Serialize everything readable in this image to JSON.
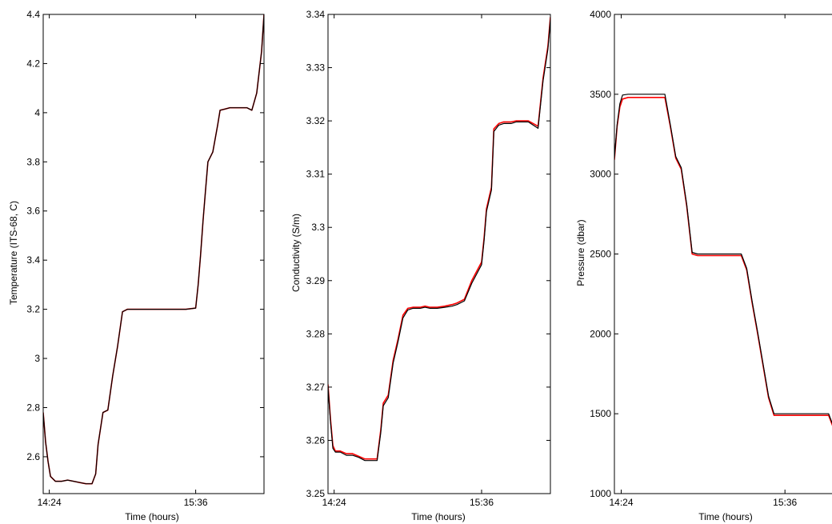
{
  "chart_data": [
    {
      "type": "line",
      "xlabel": "Time (hours)",
      "ylabel": "Temperature (ITS-68, C)",
      "ylim": [
        2.45,
        4.4
      ],
      "yticks": [
        "2.6",
        "2.8",
        "3",
        "3.2",
        "3.4",
        "3.6",
        "3.8",
        "4",
        "4.2",
        "4.4"
      ],
      "ytick_values": [
        2.6,
        2.8,
        3.0,
        3.2,
        3.4,
        3.6,
        3.8,
        4.0,
        4.2,
        4.4
      ],
      "xticks": [
        "14:24",
        "15:36"
      ],
      "xtick_values": [
        14.4,
        15.6
      ],
      "xlim": [
        14.35,
        16.16
      ],
      "series": [
        {
          "color": "#ff0000",
          "x": [
            14.35,
            14.37,
            14.39,
            14.41,
            14.45,
            14.5,
            14.55,
            14.6,
            14.65,
            14.7,
            14.75,
            14.78,
            14.8,
            14.84,
            14.88,
            14.92,
            14.96,
            15.0,
            15.04,
            15.08,
            15.1,
            15.14,
            15.18,
            15.2,
            15.24,
            15.3,
            15.36,
            15.4,
            15.46,
            15.52,
            15.6,
            15.62,
            15.64,
            15.66,
            15.68,
            15.7,
            15.74,
            15.78,
            15.8,
            15.84,
            15.88,
            15.9,
            15.94,
            15.98,
            16.02,
            16.06,
            16.1,
            16.14,
            16.16
          ],
          "y": [
            2.78,
            2.66,
            2.58,
            2.52,
            2.5,
            2.5,
            2.505,
            2.5,
            2.495,
            2.49,
            2.49,
            2.53,
            2.65,
            2.78,
            2.79,
            2.93,
            3.05,
            3.19,
            3.2,
            3.2,
            3.2,
            3.2,
            3.2,
            3.2,
            3.2,
            3.2,
            3.2,
            3.2,
            3.2,
            3.2,
            3.205,
            3.3,
            3.42,
            3.56,
            3.68,
            3.8,
            3.84,
            3.95,
            4.01,
            4.015,
            4.02,
            4.02,
            4.02,
            4.02,
            4.02,
            4.01,
            4.08,
            4.25,
            4.4
          ]
        },
        {
          "color": "#000000",
          "x": [
            14.35,
            14.37,
            14.39,
            14.41,
            14.45,
            14.5,
            14.55,
            14.6,
            14.65,
            14.7,
            14.75,
            14.78,
            14.8,
            14.84,
            14.88,
            14.92,
            14.96,
            15.0,
            15.04,
            15.08,
            15.1,
            15.14,
            15.18,
            15.2,
            15.24,
            15.3,
            15.36,
            15.4,
            15.46,
            15.52,
            15.6,
            15.62,
            15.64,
            15.66,
            15.68,
            15.7,
            15.74,
            15.78,
            15.8,
            15.84,
            15.88,
            15.9,
            15.94,
            15.98,
            16.02,
            16.06,
            16.1,
            16.14,
            16.16
          ],
          "y": [
            2.78,
            2.66,
            2.58,
            2.52,
            2.5,
            2.5,
            2.505,
            2.5,
            2.495,
            2.49,
            2.49,
            2.53,
            2.65,
            2.78,
            2.79,
            2.93,
            3.05,
            3.19,
            3.2,
            3.2,
            3.2,
            3.2,
            3.2,
            3.2,
            3.2,
            3.2,
            3.2,
            3.2,
            3.2,
            3.2,
            3.205,
            3.3,
            3.42,
            3.56,
            3.68,
            3.8,
            3.84,
            3.95,
            4.01,
            4.015,
            4.02,
            4.02,
            4.02,
            4.02,
            4.02,
            4.01,
            4.08,
            4.25,
            4.4
          ]
        }
      ]
    },
    {
      "type": "line",
      "xlabel": "Time (hours)",
      "ylabel": "Conductivity (S/m)",
      "ylim": [
        3.25,
        3.34
      ],
      "yticks": [
        "3.25",
        "3.26",
        "3.27",
        "3.28",
        "3.29",
        "3.3",
        "3.31",
        "3.32",
        "3.33",
        "3.34"
      ],
      "ytick_values": [
        3.25,
        3.26,
        3.27,
        3.28,
        3.29,
        3.3,
        3.31,
        3.32,
        3.33,
        3.34
      ],
      "xticks": [
        "14:24",
        "15:36"
      ],
      "xtick_values": [
        14.4,
        15.6
      ],
      "xlim": [
        14.35,
        16.16
      ],
      "series": [
        {
          "color": "#ff0000",
          "x": [
            14.35,
            14.37,
            14.39,
            14.41,
            14.45,
            14.5,
            14.55,
            14.6,
            14.65,
            14.7,
            14.75,
            14.78,
            14.8,
            14.84,
            14.88,
            14.92,
            14.96,
            15.0,
            15.04,
            15.08,
            15.1,
            15.14,
            15.18,
            15.2,
            15.24,
            15.3,
            15.36,
            15.4,
            15.46,
            15.52,
            15.6,
            15.62,
            15.64,
            15.66,
            15.68,
            15.7,
            15.74,
            15.78,
            15.8,
            15.84,
            15.88,
            15.9,
            15.94,
            15.98,
            16.02,
            16.06,
            16.1,
            16.14,
            16.16
          ],
          "y": [
            3.2705,
            3.264,
            3.259,
            3.258,
            3.258,
            3.2575,
            3.2575,
            3.257,
            3.2565,
            3.2565,
            3.2565,
            3.262,
            3.267,
            3.2685,
            3.275,
            3.279,
            3.2835,
            3.2848,
            3.285,
            3.285,
            3.285,
            3.2852,
            3.285,
            3.285,
            3.285,
            3.2852,
            3.2855,
            3.2858,
            3.2865,
            3.29,
            3.2935,
            3.298,
            3.3035,
            3.3055,
            3.3075,
            3.3185,
            3.3195,
            3.3198,
            3.3198,
            3.3198,
            3.32,
            3.32,
            3.32,
            3.32,
            3.3195,
            3.319,
            3.328,
            3.334,
            3.3395
          ]
        },
        {
          "color": "#000000",
          "x": [
            14.35,
            14.37,
            14.39,
            14.41,
            14.45,
            14.5,
            14.55,
            14.6,
            14.65,
            14.7,
            14.75,
            14.78,
            14.8,
            14.84,
            14.88,
            14.92,
            14.96,
            15.0,
            15.04,
            15.08,
            15.1,
            15.14,
            15.18,
            15.2,
            15.24,
            15.3,
            15.36,
            15.4,
            15.46,
            15.52,
            15.6,
            15.62,
            15.64,
            15.66,
            15.68,
            15.7,
            15.74,
            15.78,
            15.8,
            15.84,
            15.88,
            15.9,
            15.94,
            15.98,
            16.02,
            16.06,
            16.1,
            16.14,
            16.16
          ],
          "y": [
            3.27,
            3.2635,
            3.2585,
            3.2578,
            3.2578,
            3.2572,
            3.2572,
            3.2568,
            3.2562,
            3.2562,
            3.2562,
            3.2615,
            3.2665,
            3.268,
            3.2745,
            3.2785,
            3.283,
            3.2845,
            3.2848,
            3.2848,
            3.2848,
            3.285,
            3.2848,
            3.2848,
            3.2848,
            3.285,
            3.2852,
            3.2855,
            3.2862,
            3.2895,
            3.293,
            3.2975,
            3.303,
            3.305,
            3.307,
            3.318,
            3.3192,
            3.3195,
            3.3195,
            3.3195,
            3.3198,
            3.3198,
            3.3198,
            3.3198,
            3.3192,
            3.3186,
            3.3275,
            3.3335,
            3.339
          ]
        }
      ]
    },
    {
      "type": "line",
      "xlabel": "Time (hours)",
      "ylabel": "Pressure (dbar)",
      "ylim": [
        1000,
        4000
      ],
      "yticks": [
        "1000",
        "1500",
        "2000",
        "2500",
        "3000",
        "3500",
        "4000"
      ],
      "ytick_values": [
        1000,
        1500,
        2000,
        2500,
        3000,
        3500,
        4000
      ],
      "xticks": [
        "14:24",
        "15:36"
      ],
      "xtick_values": [
        14.4,
        15.6
      ],
      "xlim": [
        14.35,
        15.98
      ],
      "series": [
        {
          "color": "#ff0000",
          "x": [
            14.35,
            14.37,
            14.39,
            14.41,
            14.45,
            14.5,
            14.55,
            14.6,
            14.65,
            14.7,
            14.72,
            14.76,
            14.8,
            14.84,
            14.88,
            14.92,
            14.96,
            15.0,
            15.04,
            15.08,
            15.12,
            15.16,
            15.2,
            15.24,
            15.28,
            15.32,
            15.36,
            15.4,
            15.44,
            15.48,
            15.52,
            15.56,
            15.6,
            15.64,
            15.68,
            15.72,
            15.76,
            15.8,
            15.84,
            15.88,
            15.92,
            15.96,
            15.98
          ],
          "y": [
            3090,
            3300,
            3420,
            3470,
            3480,
            3480,
            3480,
            3480,
            3480,
            3480,
            3480,
            3300,
            3100,
            3030,
            2800,
            2500,
            2490,
            2490,
            2490,
            2490,
            2490,
            2490,
            2490,
            2490,
            2490,
            2400,
            2190,
            2000,
            1800,
            1600,
            1490,
            1490,
            1490,
            1490,
            1490,
            1490,
            1490,
            1490,
            1490,
            1490,
            1490,
            1400,
            1330
          ]
        },
        {
          "color": "#000000",
          "x": [
            14.35,
            14.37,
            14.39,
            14.41,
            14.45,
            14.5,
            14.55,
            14.6,
            14.65,
            14.7,
            14.72,
            14.76,
            14.8,
            14.84,
            14.88,
            14.92,
            14.96,
            15.0,
            15.04,
            15.08,
            15.12,
            15.16,
            15.2,
            15.24,
            15.28,
            15.32,
            15.36,
            15.4,
            15.44,
            15.48,
            15.52,
            15.56,
            15.6,
            15.64,
            15.68,
            15.72,
            15.76,
            15.8,
            15.84,
            15.88,
            15.92,
            15.96,
            15.98
          ],
          "y": [
            3100,
            3310,
            3440,
            3495,
            3500,
            3500,
            3500,
            3500,
            3500,
            3500,
            3500,
            3310,
            3110,
            3040,
            2810,
            2510,
            2500,
            2500,
            2500,
            2500,
            2500,
            2500,
            2500,
            2500,
            2500,
            2410,
            2200,
            2010,
            1810,
            1610,
            1500,
            1500,
            1500,
            1500,
            1500,
            1500,
            1500,
            1500,
            1500,
            1500,
            1500,
            1410,
            1340
          ]
        }
      ]
    }
  ]
}
